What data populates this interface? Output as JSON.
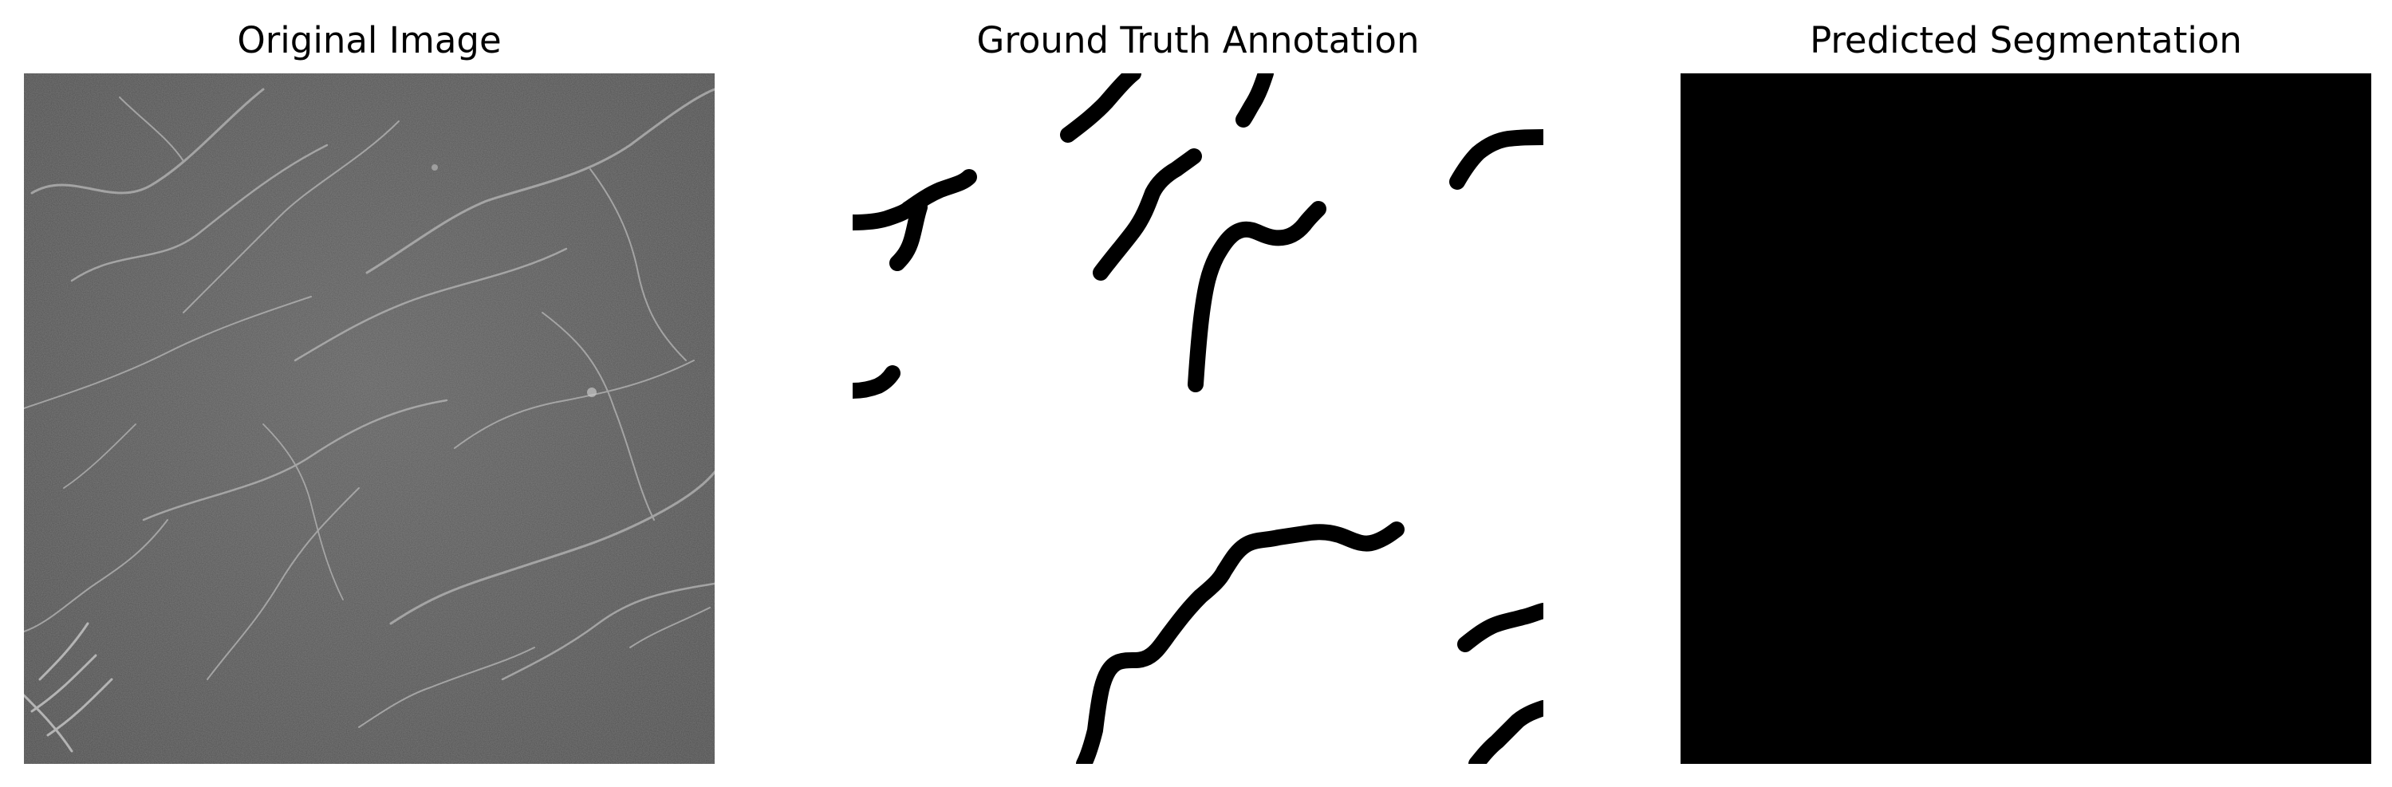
{
  "panels": [
    {
      "title": "Original Image",
      "content": "grayscale-texture-with-cracks",
      "colors": {
        "background": "#5a5a5a",
        "crack": "#bdbdbd"
      }
    },
    {
      "title": "Ground Truth Annotation",
      "content": "binary-mask-black-strokes-on-white",
      "colors": {
        "background": "#ffffff",
        "stroke": "#000000"
      }
    },
    {
      "title": "Predicted Segmentation",
      "content": "all-black-mask",
      "colors": {
        "background": "#000000"
      }
    }
  ]
}
